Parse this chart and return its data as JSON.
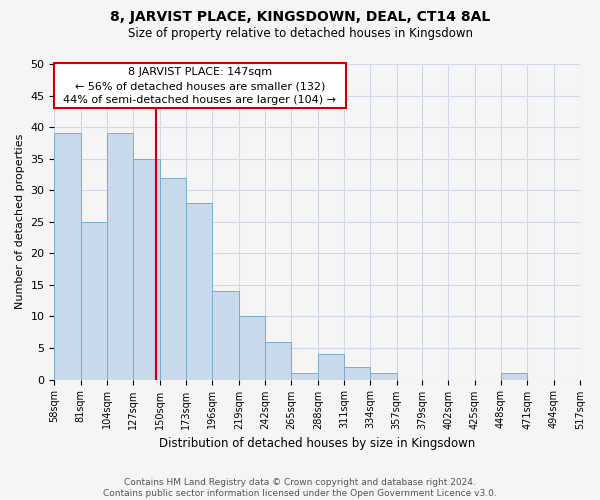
{
  "title": "8, JARVIST PLACE, KINGSDOWN, DEAL, CT14 8AL",
  "subtitle": "Size of property relative to detached houses in Kingsdown",
  "xlabel": "Distribution of detached houses by size in Kingsdown",
  "ylabel": "Number of detached properties",
  "footer_line1": "Contains HM Land Registry data © Crown copyright and database right 2024.",
  "footer_line2": "Contains public sector information licensed under the Open Government Licence v3.0.",
  "bin_edges": [
    58,
    81,
    104,
    127,
    150,
    173,
    196,
    219,
    242,
    265,
    288,
    311,
    334,
    357,
    379,
    402,
    425,
    448,
    471,
    494,
    517
  ],
  "bin_counts": [
    39,
    25,
    39,
    35,
    32,
    28,
    14,
    10,
    6,
    1,
    4,
    2,
    1,
    0,
    0,
    0,
    0,
    1,
    0,
    0
  ],
  "property_size": 147,
  "property_label": "8 JARVIST PLACE: 147sqm",
  "annotation_line1": "← 56% of detached houses are smaller (132)",
  "annotation_line2": "44% of semi-detached houses are larger (104) →",
  "bar_facecolor": "#c9d9ec",
  "bar_edgecolor": "#7aadce",
  "vline_color": "#cc0000",
  "box_edgecolor": "#cc0000",
  "grid_color": "#d0d8e8",
  "background_color": "#f5f5f5",
  "ylim": [
    0,
    50
  ],
  "yticks": [
    0,
    5,
    10,
    15,
    20,
    25,
    30,
    35,
    40,
    45,
    50
  ]
}
